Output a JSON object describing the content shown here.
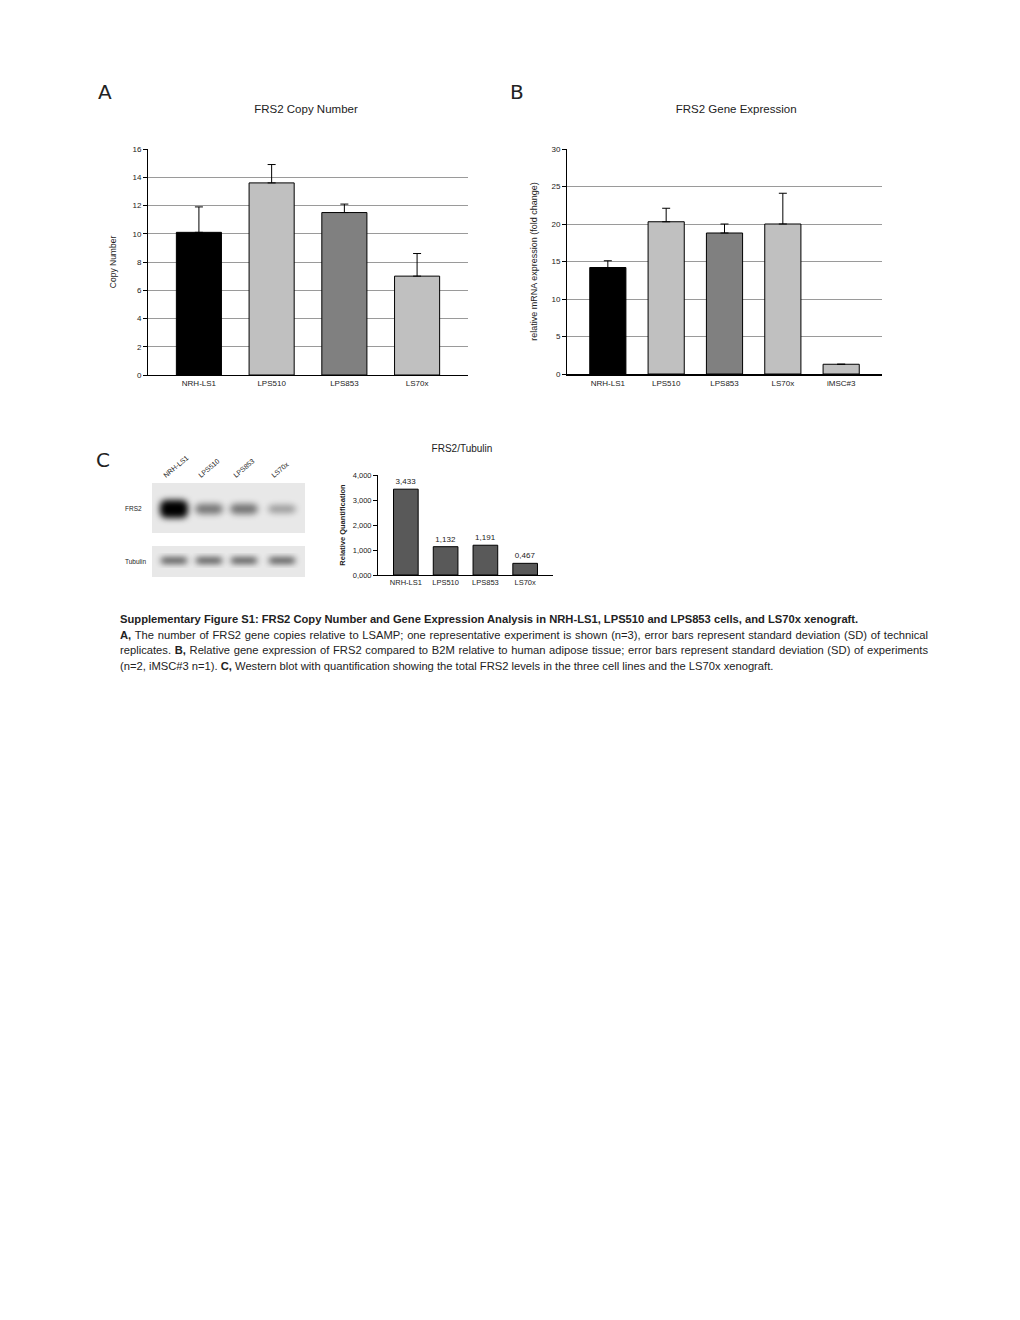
{
  "panel_labels": [
    "A",
    "B",
    "C"
  ],
  "chart_data": [
    {
      "type": "bar",
      "title": "FRS2 Copy Number",
      "y_label": "Copy Number",
      "categories": [
        "NRH-LS1",
        "LPS510",
        "LPS853",
        "LS70x"
      ],
      "values": [
        10.1,
        13.6,
        11.5,
        7.0
      ],
      "errors": [
        1.8,
        1.3,
        0.6,
        1.6
      ],
      "colors": [
        "#000000",
        "#c0c0c0",
        "#808080",
        "#c0c0c0"
      ],
      "ylim": [
        0,
        16
      ],
      "yticks": [
        0,
        2,
        4,
        6,
        8,
        10,
        12,
        14,
        16
      ],
      "grid": true
    },
    {
      "type": "bar",
      "title": "FRS2 Gene Expression",
      "y_label": "relative mRNA expression (fold change)",
      "categories": [
        "NRH-LS1",
        "LPS510",
        "LPS853",
        "LS70x",
        "iMSC#3"
      ],
      "values": [
        14.2,
        20.3,
        18.8,
        20.0,
        1.3
      ],
      "errors": [
        0.9,
        1.8,
        1.2,
        4.1,
        null
      ],
      "colors": [
        "#000000",
        "#c0c0c0",
        "#808080",
        "#c0c0c0",
        "#c0c0c0"
      ],
      "ylim": [
        0,
        30
      ],
      "yticks": [
        0,
        5,
        10,
        15,
        20,
        25,
        30
      ],
      "grid": true
    },
    {
      "type": "bar",
      "title": "FRS2/Tubulin",
      "y_label": "Relative Quantification",
      "categories": [
        "NRH-LS1",
        "LPS510",
        "LPS853",
        "LS70x"
      ],
      "values": [
        3.433,
        1.132,
        1.191,
        0.467
      ],
      "value_labels": [
        "3,433",
        "1,132",
        "1,191",
        "0,467"
      ],
      "color": "#595959",
      "ylim": [
        0,
        4
      ],
      "yticks": [
        {
          "value": 0,
          "label": "0,000"
        },
        {
          "value": 1,
          "label": "1,000"
        },
        {
          "value": 2,
          "label": "2,000"
        },
        {
          "value": 3,
          "label": "3,000"
        },
        {
          "value": 4,
          "label": "4,000"
        }
      ],
      "grid": false,
      "data_labels": true
    }
  ],
  "blot": {
    "lanes": [
      "NRH-LS1",
      "LPS510",
      "LPS853",
      "LS70x"
    ],
    "rows": [
      "FRS2",
      "Tubulin"
    ]
  },
  "caption": {
    "title": "Supplementary Figure S1: FRS2 Copy Number and Gene Expression Analysis in NRH-LS1, LPS510 and LPS853 cells, and LS70x xenograft.",
    "parts": [
      {
        "label": "A,",
        "text": "The number of FRS2 gene copies relative to LSAMP; one representative experiment is shown (n=3), error bars represent standard deviation (SD) of technical replicates."
      },
      {
        "label": "B,",
        "text": "Relative gene expression of FRS2 compared to B2M relative to human adipose tissue; error bars represent standard deviation (SD) of experiments (n=2, iMSC#3 n=1)."
      },
      {
        "label": "C,",
        "text": "Western blot with quantification showing the total FRS2 levels in the three cell lines and the LS70x xenograft."
      }
    ]
  }
}
